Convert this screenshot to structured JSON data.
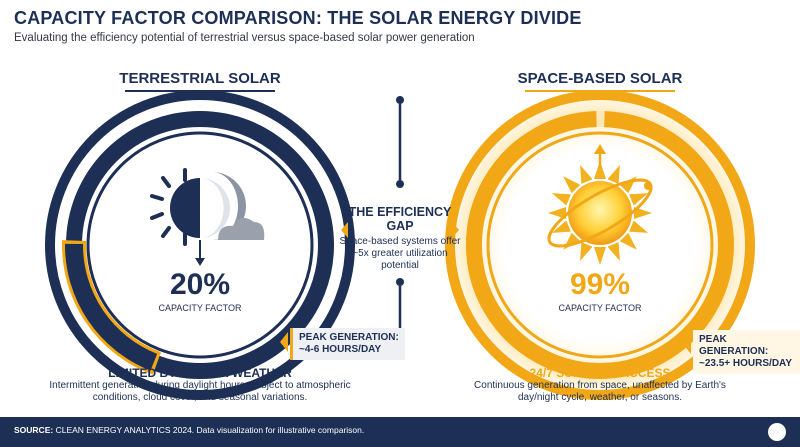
{
  "header": {
    "title": "CAPACITY FACTOR COMPARISON: THE SOLAR ENERGY DIVIDE",
    "subtitle": "Evaluating the efficiency potential of terrestrial versus space-based solar power generation"
  },
  "colors": {
    "navy": "#1d2f55",
    "gold": "#f2a816"
  },
  "chart_data": {
    "type": "pie",
    "title": "CAPACITY FACTOR COMPARISON: THE SOLAR ENERGY DIVIDE",
    "series": [
      {
        "name": "TERRESTRIAL SOLAR",
        "value": 20,
        "unit": "%",
        "label": "CAPACITY FACTOR"
      },
      {
        "name": "SPACE-BASED SOLAR",
        "value": 99,
        "unit": "%",
        "label": "CAPACITY FACTOR"
      }
    ]
  },
  "left": {
    "heading": "TERRESTRIAL SOLAR",
    "percent": "20%",
    "caption": "CAPACITY FACTOR",
    "peak_line1": "PEAK GENERATION:",
    "peak_line2": "~4-6 HOURS/DAY",
    "bottom_title": "LIMITED BY NIGHT & WEATHER",
    "bottom_text": "Intermittent generation during daylight hours, subject to atmospheric conditions, cloud cover, and seasonal variations."
  },
  "right": {
    "heading": "SPACE-BASED SOLAR",
    "percent": "99%",
    "caption": "CAPACITY FACTOR",
    "peak_line1": "PEAK GENERATION:",
    "peak_line2": "~23.5+ HOURS/DAY",
    "bottom_title": "24/7 SUNLIGHT ACCESS",
    "bottom_text": "Continuous generation from space, unaffected by Earth's day/night cycle, weather, or seasons."
  },
  "gap": {
    "title": "THE EFFICIENCY GAP",
    "text": "Space-based systems offer ~5x greater utilization potential"
  },
  "footer": {
    "source_label": "SOURCE:",
    "source_text": "CLEAN ENERGY ANALYTICS 2024. Data visualization for illustrative comparison."
  }
}
